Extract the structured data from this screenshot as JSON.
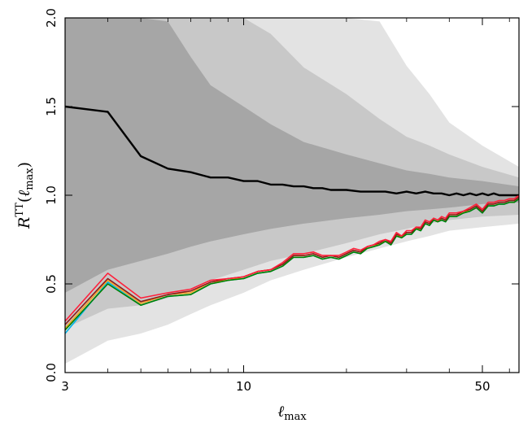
{
  "chart_data": {
    "type": "line",
    "title": "",
    "xlabel": "ℓmax",
    "xlabel_main": "ℓ",
    "xlabel_sub": "max",
    "ylabel": "R^TT(ℓmax)",
    "ylabel_main": "R",
    "ylabel_sup": "TT",
    "ylabel_arg_open": "(",
    "ylabel_arg_main": "ℓ",
    "ylabel_arg_sub": "max",
    "ylabel_arg_close": ")",
    "xscale": "log",
    "xlim": [
      3,
      64
    ],
    "ylim": [
      0.0,
      2.0
    ],
    "xticks": [
      3,
      10,
      50
    ],
    "xtick_labels": [
      "3",
      "10",
      "50"
    ],
    "yticks": [
      0.0,
      0.5,
      1.0,
      1.5,
      2.0
    ],
    "ytick_labels": [
      "0.0",
      "0.5",
      "1.0",
      "1.5",
      "2.0"
    ],
    "grid": false,
    "colors": {
      "band_1sigma": "#a6a6a6",
      "band_2sigma": "#c8c8c8",
      "band_3sigma": "#e3e3e3",
      "mean": "#000000",
      "series": [
        "#00b4e6",
        "#f5a623",
        "#008000",
        "#8b1a1a",
        "#ff1f3a"
      ]
    },
    "bands": [
      {
        "level": "3sigma",
        "x": [
          3,
          4,
          5,
          6,
          7,
          8,
          10,
          12,
          15,
          20,
          25,
          30,
          35,
          40,
          50,
          64
        ],
        "lower": [
          0.05,
          0.18,
          0.22,
          0.27,
          0.33,
          0.38,
          0.45,
          0.52,
          0.58,
          0.65,
          0.7,
          0.74,
          0.77,
          0.8,
          0.82,
          0.84
        ],
        "upper": [
          2.0,
          2.0,
          2.0,
          2.0,
          2.0,
          2.0,
          2.0,
          2.0,
          2.0,
          2.0,
          1.98,
          1.73,
          1.57,
          1.41,
          1.28,
          1.16
        ]
      },
      {
        "level": "2sigma",
        "x": [
          3,
          4,
          5,
          6,
          7,
          8,
          10,
          12,
          15,
          20,
          25,
          30,
          35,
          40,
          50,
          64
        ],
        "lower": [
          0.25,
          0.36,
          0.38,
          0.42,
          0.47,
          0.52,
          0.58,
          0.63,
          0.67,
          0.73,
          0.78,
          0.81,
          0.84,
          0.86,
          0.88,
          0.89
        ],
        "upper": [
          2.0,
          2.0,
          2.0,
          2.0,
          2.0,
          2.0,
          2.0,
          1.91,
          1.72,
          1.57,
          1.43,
          1.33,
          1.28,
          1.23,
          1.16,
          1.1
        ]
      },
      {
        "level": "1sigma",
        "x": [
          3,
          4,
          5,
          6,
          7,
          8,
          10,
          12,
          15,
          20,
          25,
          30,
          35,
          40,
          50,
          64
        ],
        "lower": [
          0.45,
          0.58,
          0.63,
          0.67,
          0.71,
          0.74,
          0.78,
          0.81,
          0.84,
          0.87,
          0.89,
          0.91,
          0.92,
          0.93,
          0.95,
          0.96
        ],
        "upper": [
          2.0,
          2.0,
          2.0,
          1.98,
          1.78,
          1.62,
          1.5,
          1.4,
          1.3,
          1.23,
          1.18,
          1.14,
          1.12,
          1.1,
          1.08,
          1.05
        ]
      }
    ],
    "series": [
      {
        "role": "mean",
        "x": [
          3,
          4,
          5,
          6,
          7,
          8,
          9,
          10,
          11,
          12,
          13,
          14,
          15,
          16,
          17,
          18,
          19,
          20,
          22,
          24,
          26,
          28,
          30,
          32,
          34,
          36,
          38,
          40,
          42,
          44,
          46,
          48,
          50,
          52,
          54,
          56,
          58,
          60,
          62,
          64
        ],
        "values": [
          1.5,
          1.47,
          1.22,
          1.15,
          1.13,
          1.1,
          1.1,
          1.08,
          1.08,
          1.06,
          1.06,
          1.05,
          1.05,
          1.04,
          1.04,
          1.03,
          1.03,
          1.03,
          1.02,
          1.02,
          1.02,
          1.01,
          1.02,
          1.01,
          1.02,
          1.01,
          1.01,
          1.0,
          1.01,
          1.0,
          1.01,
          1.0,
          1.01,
          1.0,
          1.01,
          1.0,
          1.0,
          1.0,
          1.0,
          1.0
        ]
      },
      {
        "x": [
          3,
          4,
          5,
          6,
          7,
          8,
          9,
          10,
          11,
          12,
          13,
          14,
          15,
          16,
          17,
          18,
          19,
          20,
          21,
          22,
          23,
          24,
          25,
          26,
          27,
          28,
          29,
          30,
          31,
          32,
          33,
          34,
          35,
          36,
          37,
          38,
          39,
          40,
          42,
          44,
          46,
          48,
          50,
          52,
          54,
          56,
          58,
          60,
          62,
          64
        ],
        "values": [
          0.22,
          0.51,
          0.38,
          0.43,
          0.44,
          0.5,
          0.52,
          0.53,
          0.56,
          0.57,
          0.6,
          0.65,
          0.65,
          0.66,
          0.64,
          0.65,
          0.64,
          0.66,
          0.68,
          0.67,
          0.7,
          0.71,
          0.72,
          0.74,
          0.72,
          0.77,
          0.76,
          0.78,
          0.78,
          0.81,
          0.8,
          0.84,
          0.83,
          0.86,
          0.85,
          0.86,
          0.85,
          0.88,
          0.88,
          0.9,
          0.91,
          0.93,
          0.9,
          0.94,
          0.94,
          0.95,
          0.95,
          0.96,
          0.96,
          0.98
        ]
      },
      {
        "x": [
          3,
          4,
          5,
          6,
          7,
          8,
          9,
          10,
          11,
          12,
          13,
          14,
          15,
          16,
          17,
          18,
          19,
          20,
          21,
          22,
          23,
          24,
          25,
          26,
          27,
          28,
          29,
          30,
          31,
          32,
          33,
          34,
          35,
          36,
          37,
          38,
          39,
          40,
          42,
          44,
          46,
          48,
          50,
          52,
          54,
          56,
          58,
          60,
          62,
          64
        ],
        "values": [
          0.25,
          0.52,
          0.39,
          0.44,
          0.45,
          0.51,
          0.52,
          0.54,
          0.57,
          0.58,
          0.61,
          0.66,
          0.66,
          0.67,
          0.65,
          0.66,
          0.65,
          0.67,
          0.69,
          0.68,
          0.7,
          0.71,
          0.73,
          0.74,
          0.73,
          0.78,
          0.76,
          0.79,
          0.79,
          0.81,
          0.81,
          0.85,
          0.84,
          0.86,
          0.85,
          0.87,
          0.86,
          0.89,
          0.89,
          0.9,
          0.92,
          0.94,
          0.91,
          0.95,
          0.95,
          0.96,
          0.96,
          0.97,
          0.97,
          0.99
        ]
      },
      {
        "x": [
          3,
          4,
          5,
          6,
          7,
          8,
          9,
          10,
          11,
          12,
          13,
          14,
          15,
          16,
          17,
          18,
          19,
          20,
          21,
          22,
          23,
          24,
          25,
          26,
          27,
          28,
          29,
          30,
          31,
          32,
          33,
          34,
          35,
          36,
          37,
          38,
          39,
          40,
          42,
          44,
          46,
          48,
          50,
          52,
          54,
          56,
          58,
          60,
          62,
          64
        ],
        "values": [
          0.24,
          0.5,
          0.38,
          0.43,
          0.44,
          0.5,
          0.52,
          0.53,
          0.56,
          0.57,
          0.6,
          0.65,
          0.65,
          0.66,
          0.64,
          0.65,
          0.64,
          0.66,
          0.68,
          0.67,
          0.7,
          0.71,
          0.72,
          0.74,
          0.72,
          0.77,
          0.76,
          0.78,
          0.78,
          0.81,
          0.8,
          0.84,
          0.83,
          0.86,
          0.85,
          0.86,
          0.85,
          0.88,
          0.88,
          0.9,
          0.91,
          0.93,
          0.9,
          0.94,
          0.94,
          0.95,
          0.95,
          0.96,
          0.96,
          0.98
        ]
      },
      {
        "x": [
          3,
          4,
          5,
          6,
          7,
          8,
          9,
          10,
          11,
          12,
          13,
          14,
          15,
          16,
          17,
          18,
          19,
          20,
          21,
          22,
          23,
          24,
          25,
          26,
          27,
          28,
          29,
          30,
          31,
          32,
          33,
          34,
          35,
          36,
          37,
          38,
          39,
          40,
          42,
          44,
          46,
          48,
          50,
          52,
          54,
          56,
          58,
          60,
          62,
          64
        ],
        "values": [
          0.27,
          0.53,
          0.4,
          0.44,
          0.46,
          0.51,
          0.53,
          0.54,
          0.57,
          0.58,
          0.61,
          0.66,
          0.66,
          0.67,
          0.65,
          0.66,
          0.65,
          0.67,
          0.69,
          0.68,
          0.71,
          0.72,
          0.73,
          0.75,
          0.73,
          0.78,
          0.77,
          0.79,
          0.79,
          0.82,
          0.81,
          0.85,
          0.84,
          0.87,
          0.86,
          0.87,
          0.86,
          0.89,
          0.89,
          0.91,
          0.92,
          0.94,
          0.91,
          0.95,
          0.95,
          0.96,
          0.96,
          0.97,
          0.97,
          0.99
        ]
      },
      {
        "x": [
          3,
          4,
          5,
          6,
          7,
          8,
          9,
          10,
          11,
          12,
          13,
          14,
          15,
          16,
          17,
          18,
          19,
          20,
          21,
          22,
          23,
          24,
          25,
          26,
          27,
          28,
          29,
          30,
          31,
          32,
          33,
          34,
          35,
          36,
          37,
          38,
          39,
          40,
          42,
          44,
          46,
          48,
          50,
          52,
          54,
          56,
          58,
          60,
          62,
          64
        ],
        "values": [
          0.29,
          0.56,
          0.42,
          0.45,
          0.47,
          0.52,
          0.53,
          0.54,
          0.57,
          0.58,
          0.62,
          0.67,
          0.67,
          0.68,
          0.66,
          0.66,
          0.66,
          0.68,
          0.7,
          0.69,
          0.71,
          0.72,
          0.74,
          0.75,
          0.74,
          0.79,
          0.77,
          0.8,
          0.8,
          0.82,
          0.82,
          0.86,
          0.85,
          0.87,
          0.86,
          0.88,
          0.87,
          0.9,
          0.9,
          0.91,
          0.93,
          0.95,
          0.92,
          0.96,
          0.96,
          0.97,
          0.97,
          0.98,
          0.98,
          1.0
        ]
      }
    ]
  }
}
